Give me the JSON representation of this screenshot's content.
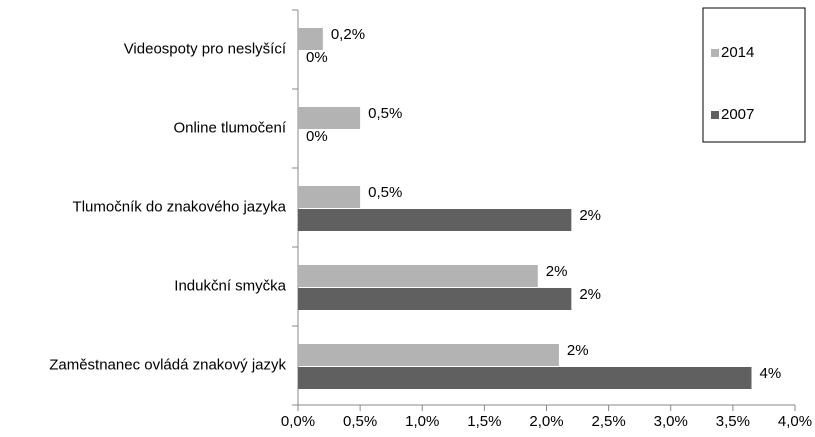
{
  "chart_data": {
    "type": "barh",
    "categories": [
      "Videospoty pro neslyšící",
      "Online tlumočení",
      "Tlumočník do znakového jazyka",
      "Indukční smyčka",
      "Zaměstnanec ovládá znakový jazyk"
    ],
    "series": [
      {
        "name": "2014",
        "color": "#b3b3b3",
        "values": [
          0.2,
          0.5,
          0.5,
          1.93,
          2.1
        ],
        "value_labels": [
          "0,2%",
          "0,5%",
          "0,5%",
          "2%",
          "2%"
        ]
      },
      {
        "name": "2007",
        "color": "#606060",
        "values": [
          0,
          0,
          2.2,
          2.2,
          3.65
        ],
        "value_labels": [
          "0%",
          "0%",
          "2%",
          "2%",
          "4%"
        ]
      }
    ],
    "xlim": [
      0,
      4
    ],
    "xticks": [
      {
        "value": 0,
        "label": "0,0%"
      },
      {
        "value": 0.5,
        "label": "0,5%"
      },
      {
        "value": 1,
        "label": "1,0%"
      },
      {
        "value": 1.5,
        "label": "1,5%"
      },
      {
        "value": 2,
        "label": "2,0%"
      },
      {
        "value": 2.5,
        "label": "2,5%"
      },
      {
        "value": 3,
        "label": "3,0%"
      },
      {
        "value": 3.5,
        "label": "3,5%"
      },
      {
        "value": 4,
        "label": "4,0%"
      }
    ],
    "grid": false,
    "legend": "upper right"
  }
}
